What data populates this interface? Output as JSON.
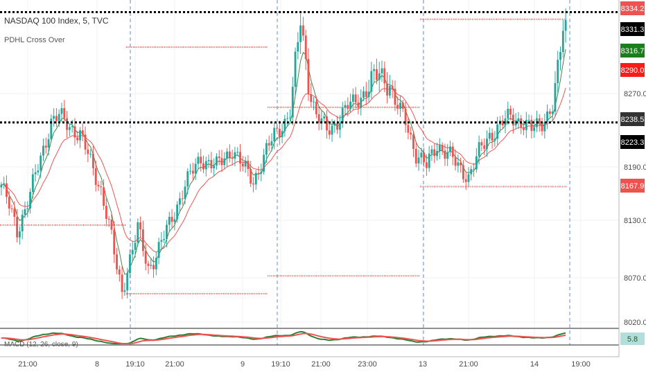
{
  "header": {
    "title": "NASDAQ 100 Index, 5, TVC",
    "indicator": "PDHL Cross Over",
    "macd_label": "MACD (12, 26, close, 9)"
  },
  "chart_data": [
    {
      "type": "candlestick",
      "title": "NASDAQ 100 Index, 5, TVC",
      "ylim": [
        8010,
        8344
      ],
      "y_ticks": [
        "8020.0",
        "8070.0",
        "8130.0",
        "8190.0",
        "8270.0"
      ],
      "x_ticks": [
        "21:00",
        "8",
        "19:10",
        "21:00",
        "9",
        "19:10",
        "21:00",
        "23:00",
        "13",
        "21:00",
        "14",
        "19:00"
      ],
      "session_separators": [
        "8 19:10",
        "9 19:10",
        "13",
        "14"
      ],
      "price_tags": [
        {
          "value": "8334.2",
          "color": "#ef5350",
          "text_color": "#ffffff"
        },
        {
          "value": "8331.3",
          "color": "#000000",
          "text_color": "#ffffff"
        },
        {
          "value": "8316.7",
          "color": "#1b7d1b",
          "text_color": "#ffffff"
        },
        {
          "value": "8290.0",
          "color": "#ff1a1a",
          "text_color": "#ffffff"
        },
        {
          "value": "8238.5",
          "color": "#333333",
          "text_color": "#ffffff"
        },
        {
          "value": "8223.3",
          "color": "#000000",
          "text_color": "#ffffff"
        },
        {
          "value": "8167.9",
          "color": "#ef5350",
          "text_color": "#ffffff"
        }
      ],
      "dotted_levels": [
        {
          "value": 8331.3,
          "color": "#000000"
        },
        {
          "value": 8238.5,
          "color": "#000000"
        }
      ],
      "pdhl_segments": [
        {
          "from_bar": 0,
          "to_bar": 48,
          "value": 8125,
          "color": "#ef5350"
        },
        {
          "from_bar": 48,
          "to_bar": 102,
          "value": 8305,
          "color": "#ef5350"
        },
        {
          "from_bar": 48,
          "to_bar": 102,
          "value": 8052,
          "color": "#ef5350"
        },
        {
          "from_bar": 102,
          "to_bar": 160,
          "value": 8255,
          "color": "#ef5350"
        },
        {
          "from_bar": 102,
          "to_bar": 160,
          "value": 8072,
          "color": "#ef5350"
        },
        {
          "from_bar": 160,
          "to_bar": 216,
          "value": 8326,
          "color": "#ef5350"
        },
        {
          "from_bar": 160,
          "to_bar": 216,
          "value": 8167.9,
          "color": "#ef5350"
        }
      ],
      "colors": {
        "up": "#26a69a",
        "down": "#ef5350",
        "ema_fast": "#2e7d32",
        "ema_slow": "#ef5350"
      }
    },
    {
      "type": "histogram",
      "title": "MACD (12, 26, close, 9)",
      "last_value": "5.8",
      "colors": {
        "macd": "#2e7d32",
        "signal": "#ef5350",
        "tag_bg": "#b2dfdb"
      }
    }
  ]
}
